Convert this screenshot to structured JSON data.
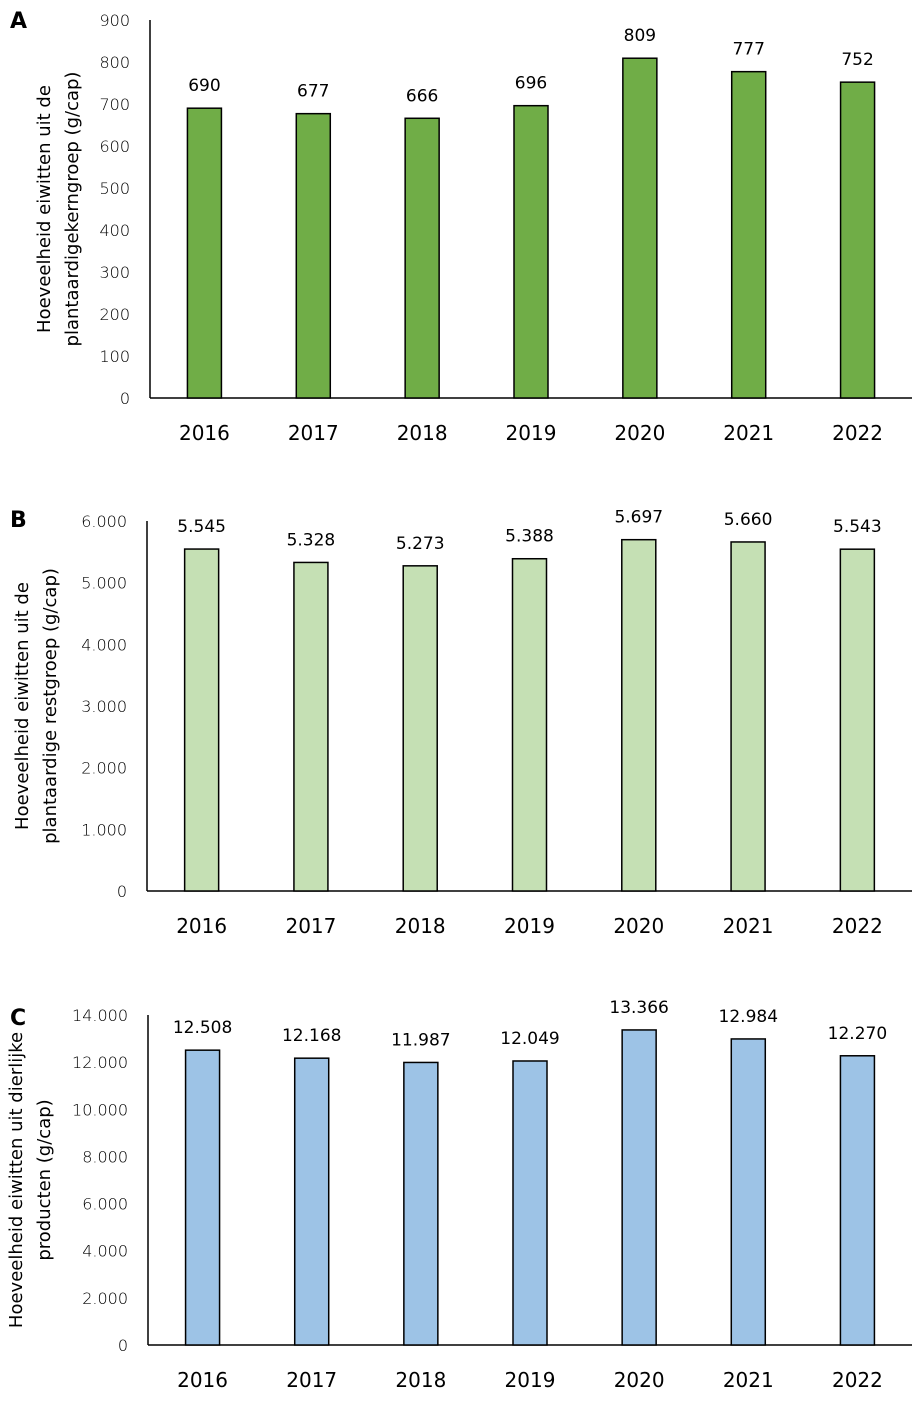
{
  "chart_data": [
    {
      "panel": "A",
      "type": "bar",
      "categories": [
        "2016",
        "2017",
        "2018",
        "2019",
        "2020",
        "2021",
        "2022"
      ],
      "values": [
        690,
        677,
        666,
        696,
        809,
        777,
        752
      ],
      "data_labels": [
        "690",
        "677",
        "666",
        "696",
        "809",
        "777",
        "752"
      ],
      "ylabel_lines": [
        "Hoeveelheid eiwitten uit de",
        "plantaardigekerngroep (g/cap)"
      ],
      "ylim": [
        0,
        900
      ],
      "yticks": [
        0,
        100,
        200,
        300,
        400,
        500,
        600,
        700,
        800,
        900
      ],
      "ytick_labels": [
        "0",
        "100",
        "200",
        "300",
        "400",
        "500",
        "600",
        "700",
        "800",
        "900"
      ],
      "bar_color": "#70ad47",
      "grid": false,
      "legend": "none"
    },
    {
      "panel": "B",
      "type": "bar",
      "categories": [
        "2016",
        "2017",
        "2018",
        "2019",
        "2020",
        "2021",
        "2022"
      ],
      "values": [
        5545,
        5328,
        5273,
        5388,
        5697,
        5660,
        5543
      ],
      "data_labels": [
        "5.545",
        "5.328",
        "5.273",
        "5.388",
        "5.697",
        "5.660",
        "5.543"
      ],
      "ylabel_lines": [
        "Hoeveelheid eiwitten uit de",
        "plantaardige restgroep (g/cap)"
      ],
      "ylim": [
        0,
        6000
      ],
      "yticks": [
        0,
        1000,
        2000,
        3000,
        4000,
        5000,
        6000
      ],
      "ytick_labels": [
        "0",
        "1.000",
        "2.000",
        "3.000",
        "4.000",
        "5.000",
        "6.000"
      ],
      "bar_color": "#c5e0b4",
      "grid": false,
      "legend": "none"
    },
    {
      "panel": "C",
      "type": "bar",
      "categories": [
        "2016",
        "2017",
        "2018",
        "2019",
        "2020",
        "2021",
        "2022"
      ],
      "values": [
        12508,
        12168,
        11987,
        12049,
        13366,
        12984,
        12270
      ],
      "data_labels": [
        "12.508",
        "12.168",
        "11.987",
        "12.049",
        "13.366",
        "12.984",
        "12.270"
      ],
      "ylabel_lines": [
        "Hoeveelheid eiwitten uit dierlijke",
        "producten (g/cap)"
      ],
      "ylim": [
        0,
        14000
      ],
      "yticks": [
        0,
        2000,
        4000,
        6000,
        8000,
        10000,
        12000,
        14000
      ],
      "ytick_labels": [
        "0",
        "2.000",
        "4.000",
        "6.000",
        "8.000",
        "10.000",
        "12.000",
        "14.000"
      ],
      "bar_color": "#9dc3e6",
      "grid": false,
      "legend": "none"
    }
  ]
}
